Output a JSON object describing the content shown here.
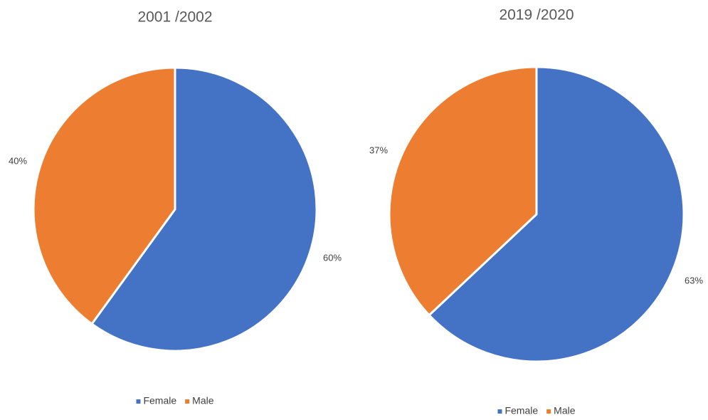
{
  "chart_data": [
    {
      "type": "pie",
      "title": "2001 /2002",
      "categories": [
        "Female",
        "Male"
      ],
      "values": [
        60,
        40
      ],
      "value_labels": [
        "60%",
        "40%"
      ],
      "colors": [
        "#4472c4",
        "#ed7d31"
      ],
      "legend": "bottom"
    },
    {
      "type": "pie",
      "title": "2019 /2020",
      "categories": [
        "Female",
        "Male"
      ],
      "values": [
        63,
        37
      ],
      "value_labels": [
        "63%",
        "37%"
      ],
      "colors": [
        "#4472c4",
        "#ed7d31"
      ],
      "legend": "bottom"
    }
  ]
}
